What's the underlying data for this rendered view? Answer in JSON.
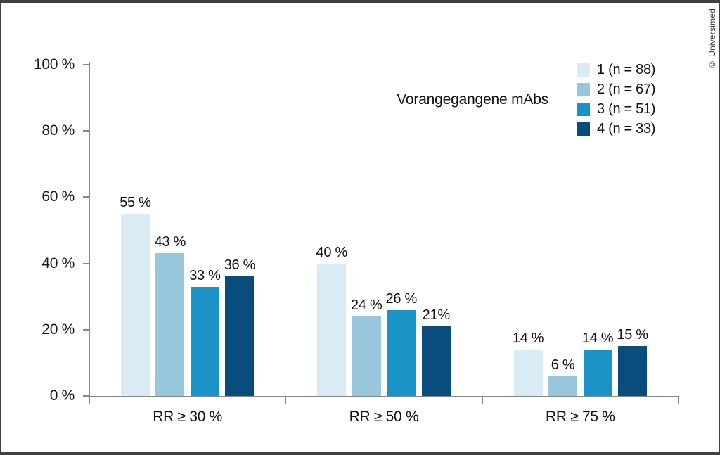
{
  "frame": {
    "border_color": "#3d4144",
    "background": "#ffffff"
  },
  "copyright": "© Universimed",
  "chart_data": {
    "type": "bar",
    "title": "",
    "annotation": "Vorangegangene mAbs",
    "categories": [
      "RR ≥ 30 %",
      "RR ≥ 50 %",
      "RR ≥ 75 %"
    ],
    "series": [
      {
        "name": "1 (n = 88)",
        "color": "#d9ebf5",
        "values": [
          55,
          40,
          14
        ],
        "value_labels": [
          "55 %",
          "40 %",
          "14 %"
        ]
      },
      {
        "name": "2 (n = 67)",
        "color": "#98c6dd",
        "values": [
          43,
          24,
          6
        ],
        "value_labels": [
          "43 %",
          "24 %",
          "6 %"
        ]
      },
      {
        "name": "3 (n = 51)",
        "color": "#1b92c6",
        "values": [
          33,
          26,
          14
        ],
        "value_labels": [
          "33 %",
          "26 %",
          "14 %"
        ]
      },
      {
        "name": "4 (n = 33)",
        "color": "#084d7c",
        "values": [
          36,
          21,
          15
        ],
        "value_labels": [
          "36 %",
          "21%",
          "15 %"
        ]
      }
    ],
    "ylim": [
      0,
      100
    ],
    "y_ticks": [
      {
        "value": 0,
        "label": "0 %"
      },
      {
        "value": 20,
        "label": "20 %"
      },
      {
        "value": 40,
        "label": "40 %"
      },
      {
        "value": 60,
        "label": "60 %"
      },
      {
        "value": 80,
        "label": "80 %"
      },
      {
        "value": 100,
        "label": "100 %"
      }
    ],
    "grid": false,
    "legend_position": "top-right",
    "axis_color": "#878787",
    "text_color": "#1a1a1a"
  }
}
